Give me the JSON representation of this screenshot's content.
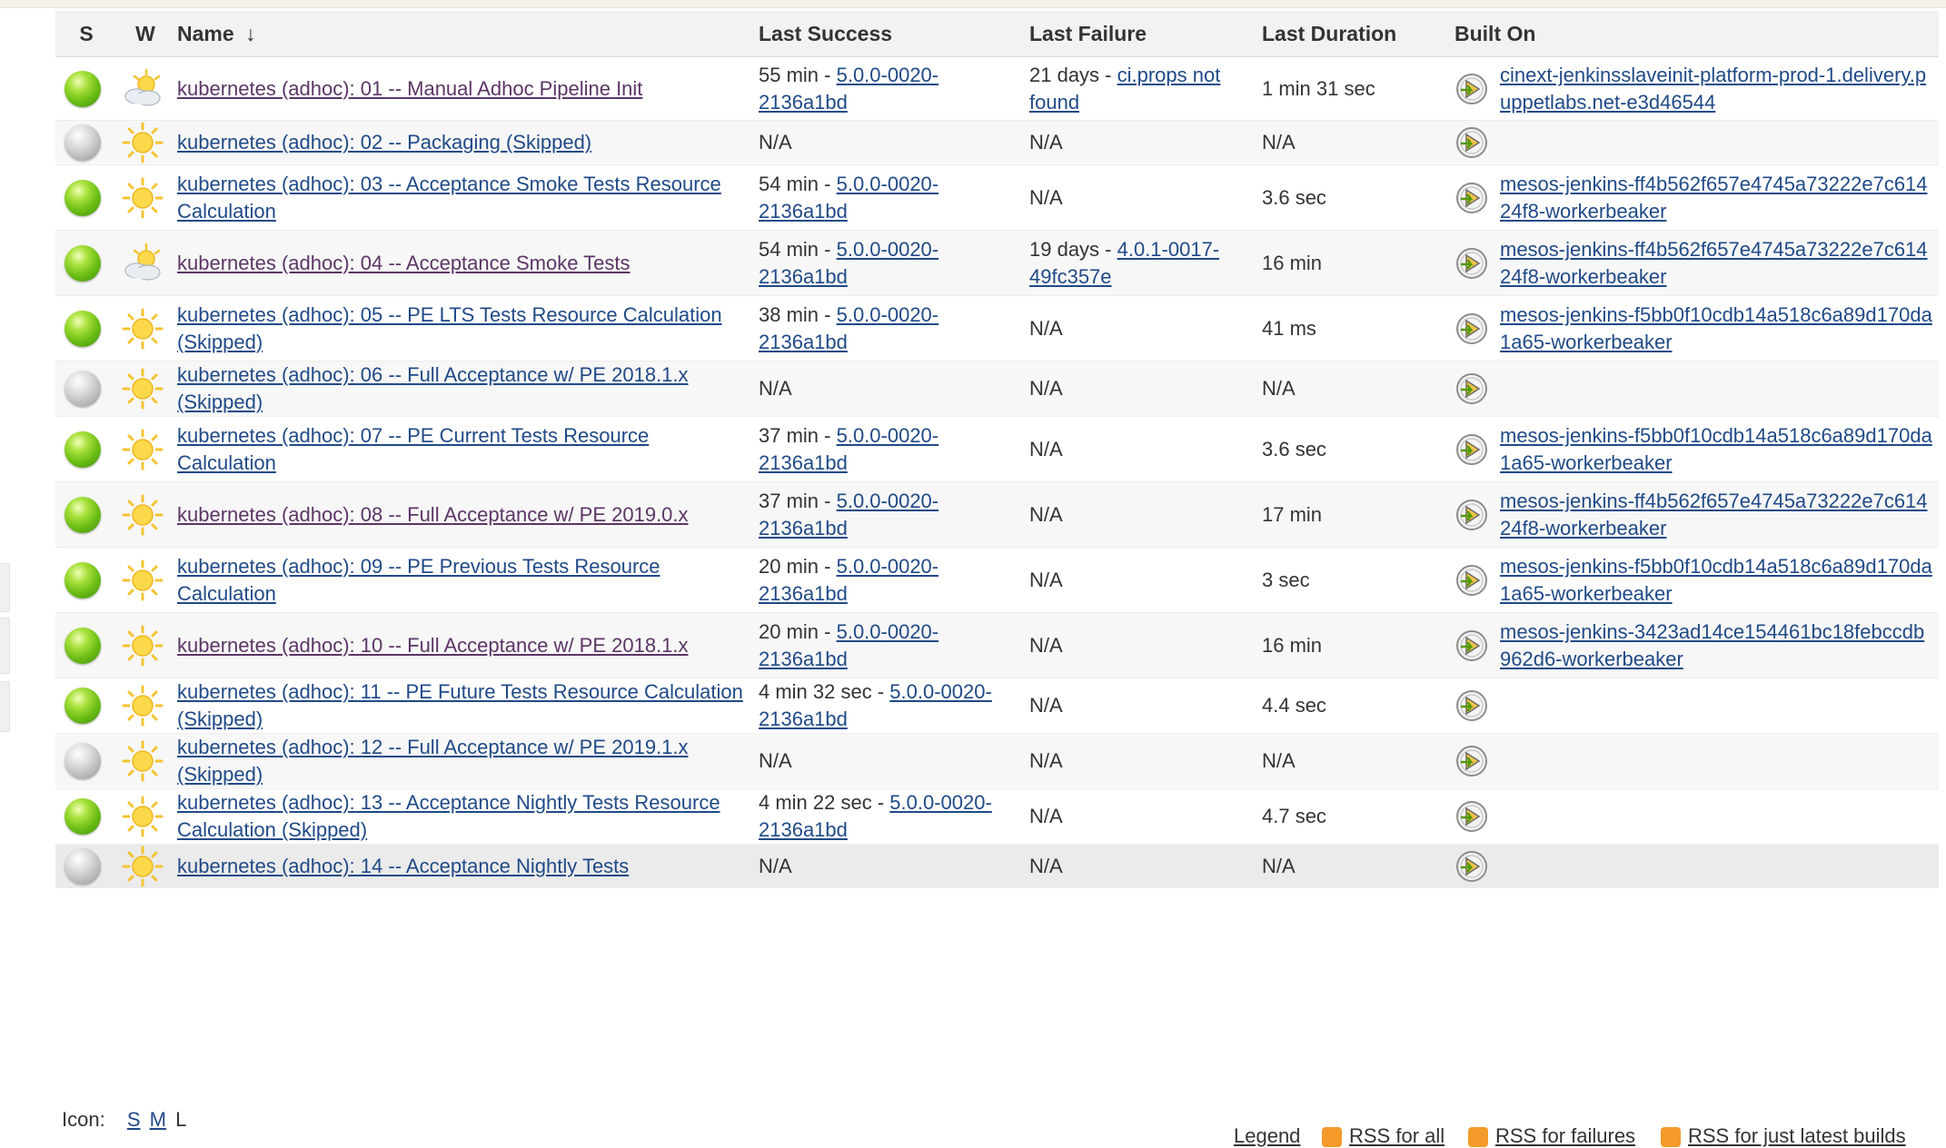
{
  "table": {
    "headers": {
      "status": "S",
      "weather": "W",
      "name": "Name",
      "sort_arrow": "↓",
      "last_success": "Last Success",
      "last_failure": "Last Failure",
      "last_duration": "Last Duration",
      "built_on": "Built On"
    },
    "rows": [
      {
        "status": "blue",
        "weather": "cloudy-sun",
        "name": "kubernetes (adhoc): 01 -- Manual Adhoc Pipeline Init",
        "name_visited": true,
        "success_text": "55 min - ",
        "success_link": "5.0.0-0020-2136a1bd",
        "failure_text": "21 days - ",
        "failure_link": "ci.props not found",
        "duration": "1 min 31 sec",
        "built_on": "cinext-jenkinsslaveinit-platform-prod-1.delivery.puppetlabs.net-e3d46544"
      },
      {
        "status": "grey",
        "weather": "sun",
        "name": "kubernetes (adhoc): 02 -- Packaging (Skipped)",
        "name_visited": false,
        "success_text": "N/A",
        "success_link": "",
        "failure_text": "N/A",
        "failure_link": "",
        "duration": "N/A",
        "built_on": ""
      },
      {
        "status": "blue",
        "weather": "sun",
        "name": "kubernetes (adhoc): 03 -- Acceptance Smoke Tests Resource Calculation",
        "name_visited": false,
        "success_text": "54 min - ",
        "success_link": "5.0.0-0020-2136a1bd",
        "failure_text": "N/A",
        "failure_link": "",
        "duration": "3.6 sec",
        "built_on": "mesos-jenkins-ff4b562f657e4745a73222e7c61424f8-workerbeaker"
      },
      {
        "status": "blue",
        "weather": "cloudy-sun",
        "name": "kubernetes (adhoc): 04 -- Acceptance Smoke Tests",
        "name_visited": true,
        "success_text": "54 min - ",
        "success_link": "5.0.0-0020-2136a1bd",
        "failure_text": "19 days - ",
        "failure_link": "4.0.1-0017-49fc357e",
        "duration": "16 min",
        "built_on": "mesos-jenkins-ff4b562f657e4745a73222e7c61424f8-workerbeaker"
      },
      {
        "status": "blue",
        "weather": "sun",
        "name": "kubernetes (adhoc): 05 -- PE LTS Tests Resource Calculation (Skipped)",
        "name_visited": false,
        "success_text": "38 min - ",
        "success_link": "5.0.0-0020-2136a1bd",
        "failure_text": "N/A",
        "failure_link": "",
        "duration": "41 ms",
        "built_on": "mesos-jenkins-f5bb0f10cdb14a518c6a89d170da1a65-workerbeaker"
      },
      {
        "status": "grey",
        "weather": "sun",
        "name": "kubernetes (adhoc): 06 -- Full Acceptance w/ PE 2018.1.x (Skipped)",
        "name_visited": false,
        "success_text": "N/A",
        "success_link": "",
        "failure_text": "N/A",
        "failure_link": "",
        "duration": "N/A",
        "built_on": ""
      },
      {
        "status": "blue",
        "weather": "sun",
        "name": "kubernetes (adhoc): 07 -- PE Current Tests Resource Calculation",
        "name_visited": false,
        "success_text": "37 min - ",
        "success_link": "5.0.0-0020-2136a1bd",
        "failure_text": "N/A",
        "failure_link": "",
        "duration": "3.6 sec",
        "built_on": "mesos-jenkins-f5bb0f10cdb14a518c6a89d170da1a65-workerbeaker"
      },
      {
        "status": "blue",
        "weather": "sun",
        "name": "kubernetes (adhoc): 08 -- Full Acceptance w/ PE 2019.0.x",
        "name_visited": true,
        "success_text": "37 min - ",
        "success_link": "5.0.0-0020-2136a1bd",
        "failure_text": "N/A",
        "failure_link": "",
        "duration": "17 min",
        "built_on": "mesos-jenkins-ff4b562f657e4745a73222e7c61424f8-workerbeaker"
      },
      {
        "status": "blue",
        "weather": "sun",
        "name": "kubernetes (adhoc): 09 -- PE Previous Tests Resource Calculation",
        "name_visited": false,
        "success_text": "20 min - ",
        "success_link": "5.0.0-0020-2136a1bd",
        "failure_text": "N/A",
        "failure_link": "",
        "duration": "3 sec",
        "built_on": "mesos-jenkins-f5bb0f10cdb14a518c6a89d170da1a65-workerbeaker"
      },
      {
        "status": "blue",
        "weather": "sun",
        "name": "kubernetes (adhoc): 10 -- Full Acceptance w/ PE 2018.1.x",
        "name_visited": true,
        "success_text": "20 min - ",
        "success_link": "5.0.0-0020-2136a1bd",
        "failure_text": "N/A",
        "failure_link": "",
        "duration": "16 min",
        "built_on": "mesos-jenkins-3423ad14ce154461bc18febccdb962d6-workerbeaker"
      },
      {
        "status": "blue",
        "weather": "sun",
        "name": "kubernetes (adhoc): 11 -- PE Future Tests Resource Calculation (Skipped)",
        "name_visited": false,
        "success_text": "4 min 32 sec - ",
        "success_link": "5.0.0-0020-2136a1bd",
        "failure_text": "N/A",
        "failure_link": "",
        "duration": "4.4 sec",
        "built_on": ""
      },
      {
        "status": "grey",
        "weather": "sun",
        "name": "kubernetes (adhoc): 12 -- Full Acceptance w/ PE 2019.1.x (Skipped)",
        "name_visited": false,
        "success_text": "N/A",
        "success_link": "",
        "failure_text": "N/A",
        "failure_link": "",
        "duration": "N/A",
        "built_on": ""
      },
      {
        "status": "blue",
        "weather": "sun",
        "name": "kubernetes (adhoc): 13 -- Acceptance Nightly Tests Resource Calculation (Skipped)",
        "name_visited": false,
        "success_text": "4 min 22 sec - ",
        "success_link": "5.0.0-0020-2136a1bd",
        "failure_text": "N/A",
        "failure_link": "",
        "duration": "4.7 sec",
        "built_on": ""
      },
      {
        "status": "grey",
        "weather": "sun",
        "name": "kubernetes (adhoc): 14 -- Acceptance Nightly Tests",
        "name_visited": false,
        "success_text": "N/A",
        "success_link": "",
        "failure_text": "N/A",
        "failure_link": "",
        "duration": "N/A",
        "built_on": ""
      }
    ]
  },
  "footer": {
    "icon_label": "Icon:",
    "sizes": [
      "S",
      "M",
      "L"
    ],
    "legend": "Legend",
    "rss_all": "RSS for all",
    "rss_failures": "RSS for failures",
    "rss_latest": "RSS for just latest builds"
  },
  "colors": {
    "link": "#204a87",
    "visited_link": "#5c3566",
    "success_ball": "#6cbe16",
    "disabled_ball": "#b5b5b5",
    "rss": "#f39a2a"
  }
}
